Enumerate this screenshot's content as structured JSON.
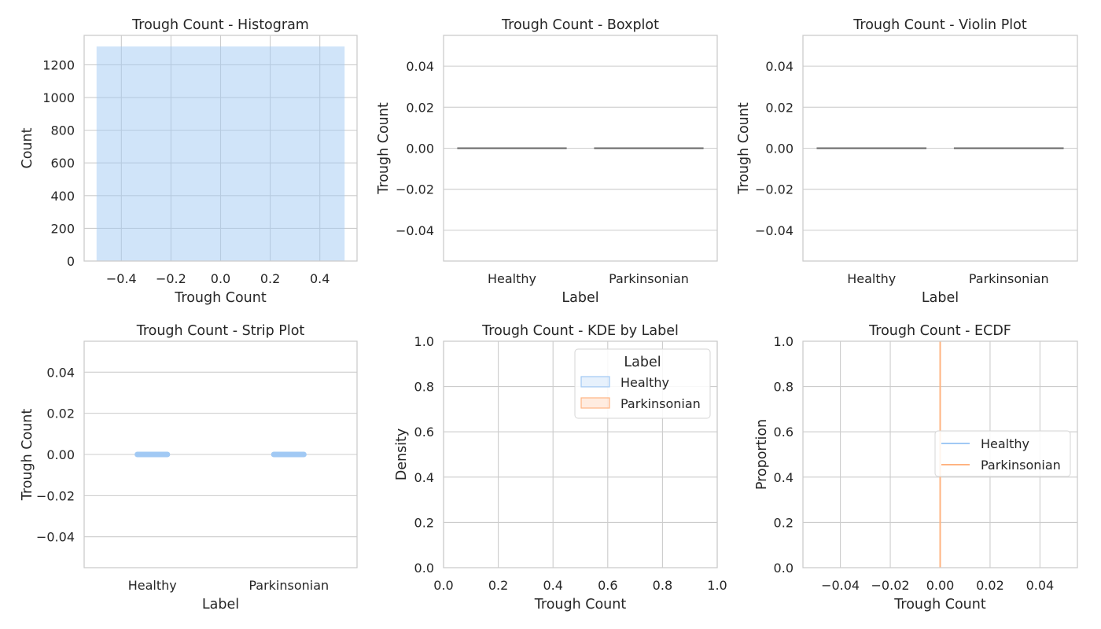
{
  "colors": {
    "healthy": "#a1c9f4",
    "parkinsonian": "#ffb482",
    "grid": "#cccccc",
    "spine": "#cccccc",
    "text": "#262626",
    "median": "#666666"
  },
  "chart_data": [
    {
      "type": "bar",
      "title": "Trough Count - Histogram",
      "xlabel": "Trough Count",
      "ylabel": "Count",
      "xlim": [
        -0.55,
        0.55
      ],
      "ylim": [
        0,
        1380
      ],
      "xticks": [
        -0.4,
        -0.2,
        0.0,
        0.2,
        0.4
      ],
      "xtick_labels": [
        "−0.4",
        "−0.2",
        "0.0",
        "0.2",
        "0.4"
      ],
      "yticks": [
        0,
        200,
        400,
        600,
        800,
        1000,
        1200
      ],
      "ytick_labels": [
        "0",
        "200",
        "400",
        "600",
        "800",
        "1000",
        "1200"
      ],
      "bins": [
        {
          "x0": -0.5,
          "x1": 0.5,
          "count": 1312
        }
      ],
      "grid": true
    },
    {
      "type": "box",
      "title": "Trough Count - Boxplot",
      "xlabel": "Label",
      "ylabel": "Trough Count",
      "categories": [
        "Healthy",
        "Parkinsonian"
      ],
      "medians": [
        0.0,
        0.0
      ],
      "ylim": [
        -0.055,
        0.055
      ],
      "yticks": [
        -0.04,
        -0.02,
        0.0,
        0.02,
        0.04
      ],
      "ytick_labels": [
        "−0.04",
        "−0.02",
        "0.00",
        "0.02",
        "0.04"
      ],
      "grid": true
    },
    {
      "type": "violin",
      "title": "Trough Count - Violin Plot",
      "xlabel": "Label",
      "ylabel": "Trough Count",
      "categories": [
        "Healthy",
        "Parkinsonian"
      ],
      "medians": [
        0.0,
        0.0
      ],
      "ylim": [
        -0.055,
        0.055
      ],
      "yticks": [
        -0.04,
        -0.02,
        0.0,
        0.02,
        0.04
      ],
      "ytick_labels": [
        "−0.04",
        "−0.02",
        "0.00",
        "0.02",
        "0.04"
      ],
      "grid": true
    },
    {
      "type": "strip",
      "title": "Trough Count - Strip Plot",
      "xlabel": "Label",
      "ylabel": "Trough Count",
      "categories": [
        "Healthy",
        "Parkinsonian"
      ],
      "values": [
        0.0,
        0.0
      ],
      "ylim": [
        -0.055,
        0.055
      ],
      "yticks": [
        -0.04,
        -0.02,
        0.0,
        0.02,
        0.04
      ],
      "ytick_labels": [
        "−0.04",
        "−0.02",
        "0.00",
        "0.02",
        "0.04"
      ],
      "grid": true
    },
    {
      "type": "kde",
      "title": "Trough Count - KDE by Label",
      "xlabel": "Trough Count",
      "ylabel": "Density",
      "xlim": [
        0,
        1
      ],
      "ylim": [
        0,
        1
      ],
      "xticks": [
        0,
        0.2,
        0.4,
        0.6,
        0.8,
        1.0
      ],
      "xtick_labels": [
        "0.0",
        "0.2",
        "0.4",
        "0.6",
        "0.8",
        "1.0"
      ],
      "yticks": [
        0,
        0.2,
        0.4,
        0.6,
        0.8,
        1.0
      ],
      "ytick_labels": [
        "0.0",
        "0.2",
        "0.4",
        "0.6",
        "0.8",
        "1.0"
      ],
      "legend": {
        "title": "Label",
        "position": "top-right",
        "entries": [
          {
            "name": "Healthy",
            "color": "#a1c9f4"
          },
          {
            "name": "Parkinsonian",
            "color": "#ffb482"
          }
        ]
      },
      "grid": true
    },
    {
      "type": "ecdf",
      "title": "Trough Count - ECDF",
      "xlabel": "Trough Count",
      "ylabel": "Proportion",
      "xlim": [
        -0.055,
        0.055
      ],
      "ylim": [
        0,
        1
      ],
      "xticks": [
        -0.04,
        -0.02,
        0.0,
        0.02,
        0.04
      ],
      "xtick_labels": [
        "−0.04",
        "−0.02",
        "0.00",
        "0.02",
        "0.04"
      ],
      "yticks": [
        0,
        0.2,
        0.4,
        0.6,
        0.8,
        1.0
      ],
      "ytick_labels": [
        "0.0",
        "0.2",
        "0.4",
        "0.6",
        "0.8",
        "1.0"
      ],
      "series": [
        {
          "name": "Healthy",
          "color": "#a1c9f4",
          "x": [
            0.0
          ],
          "y": [
            1.0
          ]
        },
        {
          "name": "Parkinsonian",
          "color": "#ffb482",
          "x": [
            0.0
          ],
          "y": [
            1.0
          ]
        }
      ],
      "legend": {
        "position": "center-right",
        "entries": [
          {
            "name": "Healthy",
            "color": "#a1c9f4"
          },
          {
            "name": "Parkinsonian",
            "color": "#ffb482"
          }
        ]
      },
      "grid": true
    }
  ]
}
